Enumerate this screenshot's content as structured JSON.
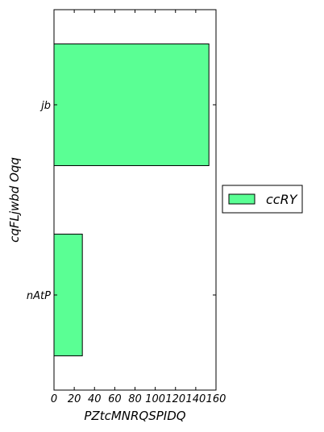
{
  "chart_data": {
    "type": "bar",
    "orientation": "horizontal",
    "categories": [
      "jb",
      "nAtP"
    ],
    "series": [
      {
        "name": "ccRY",
        "values": [
          153,
          28
        ],
        "color": "#5aff94"
      }
    ],
    "xlabel": "PZtcMNRQSPIDQ",
    "ylabel": "cqFLjwbd Oqq",
    "xlim": [
      0,
      160
    ],
    "xticks": [
      "0",
      "20",
      "40",
      "60",
      "80",
      "100",
      "120",
      "140",
      "160"
    ],
    "grid": false,
    "legend": "right"
  }
}
